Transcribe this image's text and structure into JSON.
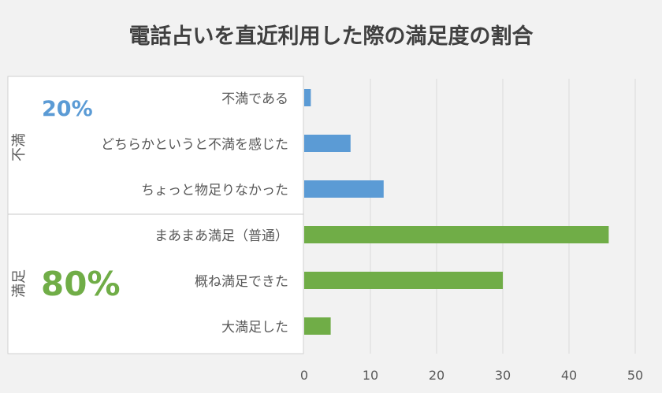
{
  "chart_data": {
    "type": "bar",
    "orientation": "horizontal",
    "title": "電話占いを直近利用した際の満足度の割合",
    "categories": [
      "不満である",
      "どちらかというと不満を感じた",
      "ちょっと物足りなかった",
      "まあまあ満足（普通）",
      "概ね満足できた",
      "大満足した"
    ],
    "values": [
      1,
      7,
      12,
      46,
      30,
      4
    ],
    "bar_colors": [
      "#5b9bd5",
      "#5b9bd5",
      "#5b9bd5",
      "#70ad47",
      "#70ad47",
      "#70ad47"
    ],
    "xlim": [
      0,
      50
    ],
    "xticks": [
      0,
      10,
      20,
      30,
      40,
      50
    ],
    "grid": true,
    "groups": [
      {
        "label": "不満",
        "percent": "20%",
        "color": "#5b9bd5",
        "categories": [
          0,
          1,
          2
        ]
      },
      {
        "label": "満足",
        "percent": "80%",
        "color": "#70ad47",
        "categories": [
          3,
          4,
          5
        ]
      }
    ]
  }
}
